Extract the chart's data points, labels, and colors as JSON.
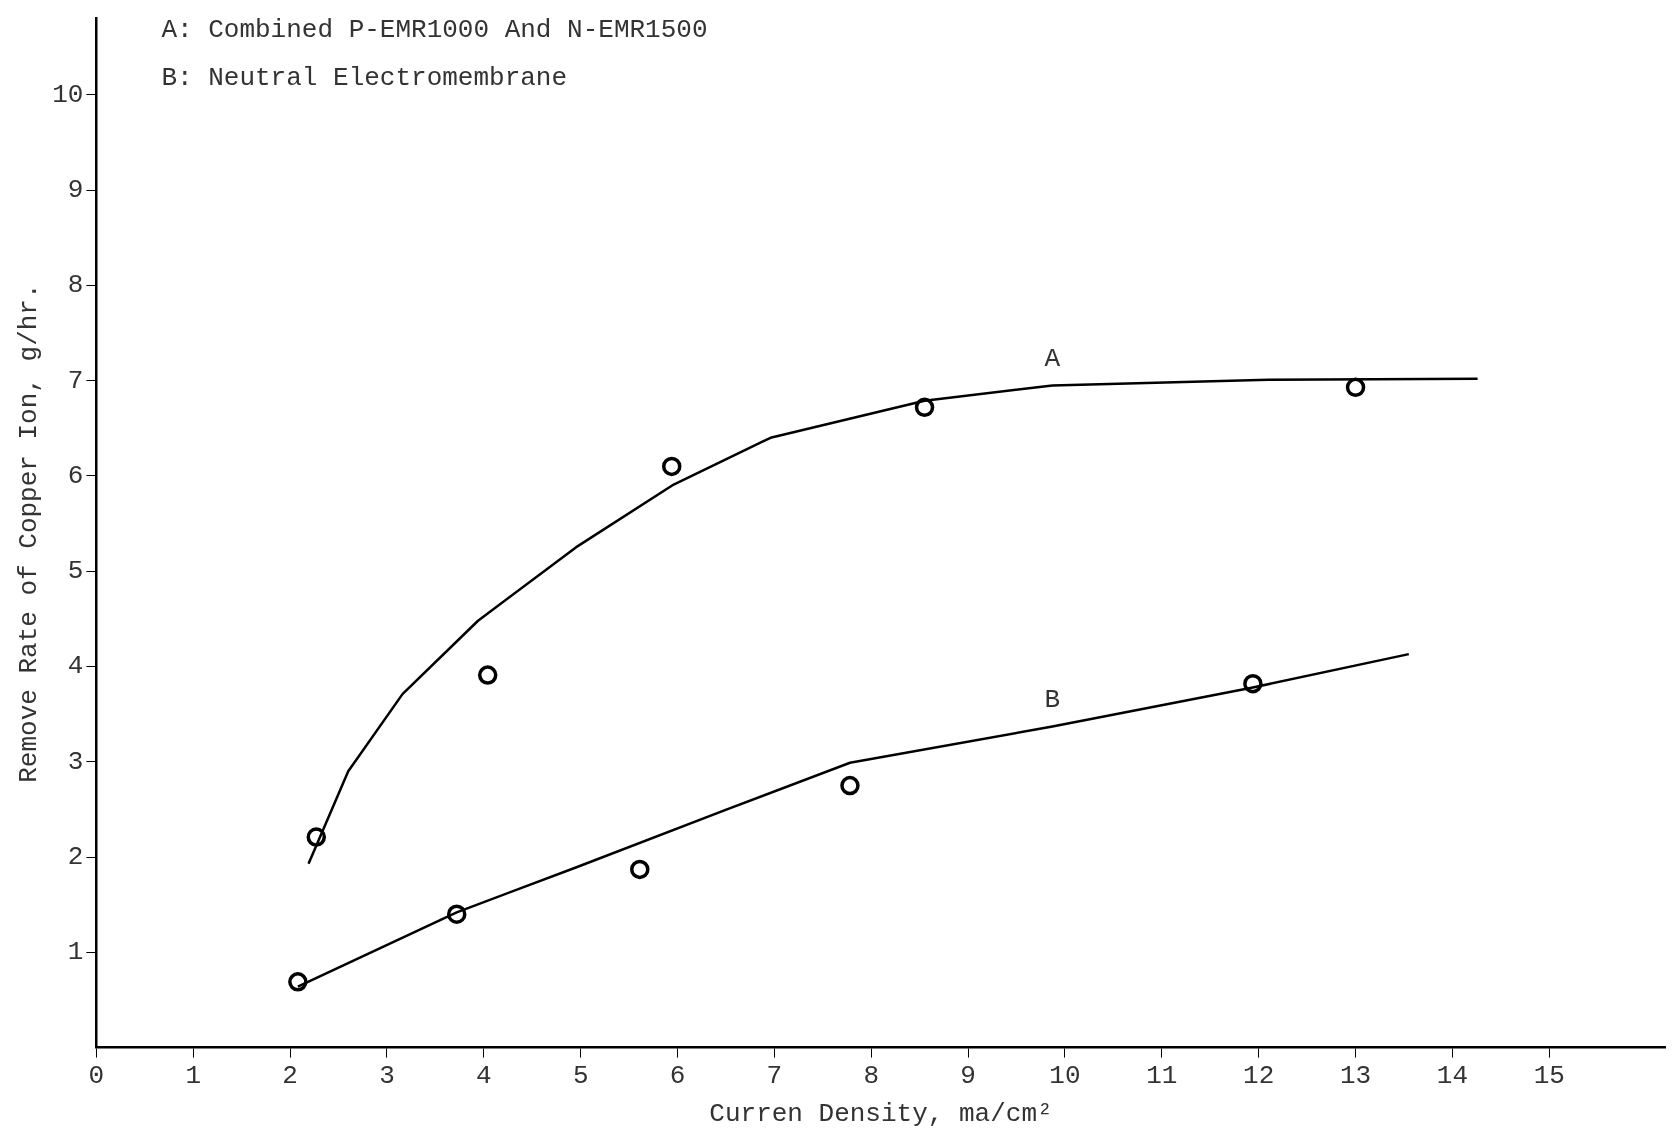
{
  "chart_data": {
    "type": "scatter",
    "xlabel": "Curren Density, ma/cm²",
    "ylabel": "Remove Rate of Copper Ion, g/hr.",
    "xlim": [
      0,
      16.2
    ],
    "xticks": [
      0,
      1,
      2,
      3,
      4,
      5,
      6,
      7,
      8,
      9,
      10,
      11,
      12,
      13,
      14,
      15
    ],
    "ylim": [
      0,
      10.8
    ],
    "yticks": [
      1,
      2,
      3,
      4,
      5,
      6,
      7,
      8,
      9,
      10
    ],
    "grid": false,
    "legend": false,
    "series": [
      {
        "marker": "circle",
        "color": "#000000",
        "x": [
          2.27,
          4.04,
          5.94,
          8.55,
          13.0
        ],
        "values": [
          2.21,
          3.91,
          6.1,
          6.72,
          6.93
        ]
      },
      {
        "type": "line",
        "marker": "none",
        "color": "#000000",
        "x": [
          2.19,
          2.6,
          3.16,
          3.94,
          4.95,
          5.96,
          6.96,
          8.55,
          9.87,
          12.1,
          14.26
        ],
        "values": [
          1.93,
          2.9,
          3.71,
          4.48,
          5.25,
          5.91,
          6.4,
          6.79,
          6.95,
          7.01,
          7.02
        ]
      },
      {
        "marker": "circle",
        "color": "#000000",
        "x": [
          2.08,
          3.72,
          5.61,
          7.78,
          11.94
        ],
        "values": [
          0.69,
          1.4,
          1.87,
          2.75,
          3.82
        ]
      },
      {
        "type": "line",
        "marker": "none",
        "color": "#000000",
        "x": [
          2.08,
          3.72,
          4.95,
          6.51,
          7.78,
          9.87,
          11.94,
          13.55
        ],
        "values": [
          0.64,
          1.42,
          1.89,
          2.5,
          2.99,
          3.37,
          3.78,
          4.13
        ]
      }
    ],
    "annotations": [
      "A: Combined P-EMR1000 And N-EMR1500",
      "B: Neutral Electromembrane",
      {
        "text": "A",
        "x": 9.87,
        "y": 6.95
      },
      {
        "text": "B",
        "x": 9.87,
        "y": 3.37
      }
    ]
  }
}
